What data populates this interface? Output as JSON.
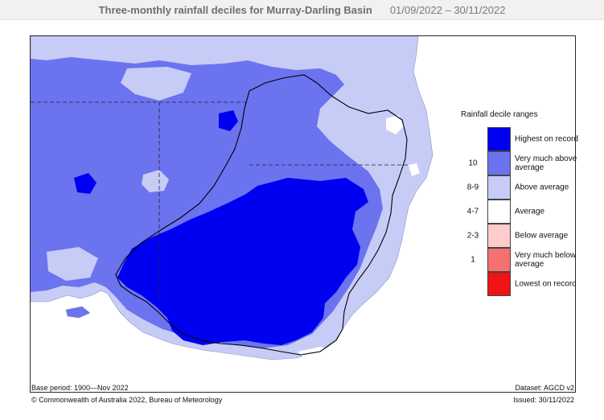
{
  "header": {
    "title": "Three-monthly rainfall deciles for Murray-Darling Basin",
    "date_range": "01/09/2022 – 30/11/2022"
  },
  "legend": {
    "title": "Rainfall decile ranges",
    "items": [
      {
        "decile": "",
        "label": "Highest on record",
        "color": "#0000f0"
      },
      {
        "decile": "10",
        "label": "Very much above average",
        "color": "#6b73ef"
      },
      {
        "decile": "8-9",
        "label": "Above average",
        "color": "#c7ccf7"
      },
      {
        "decile": "4-7",
        "label": "Average",
        "color": "#ffffff"
      },
      {
        "decile": "2-3",
        "label": "Below average",
        "color": "#ffcccc"
      },
      {
        "decile": "1",
        "label": "Very much below average",
        "color": "#f57070"
      },
      {
        "decile": "",
        "label": "Lowest on record",
        "color": "#f01414"
      }
    ]
  },
  "footer": {
    "base_period": "Base period: 1900—Nov 2022",
    "dataset": "Dataset: AGCD v2",
    "copyright": "© Commonwealth of Australia 2022, Bureau of Meteorology",
    "issued": "Issued: 30/11/2022"
  },
  "colors": {
    "highest": "#0000f0",
    "very_much_above": "#6b73ef",
    "above": "#c7ccf7",
    "average": "#ffffff",
    "ocean": "#ffffff",
    "boundary": "#000000"
  }
}
